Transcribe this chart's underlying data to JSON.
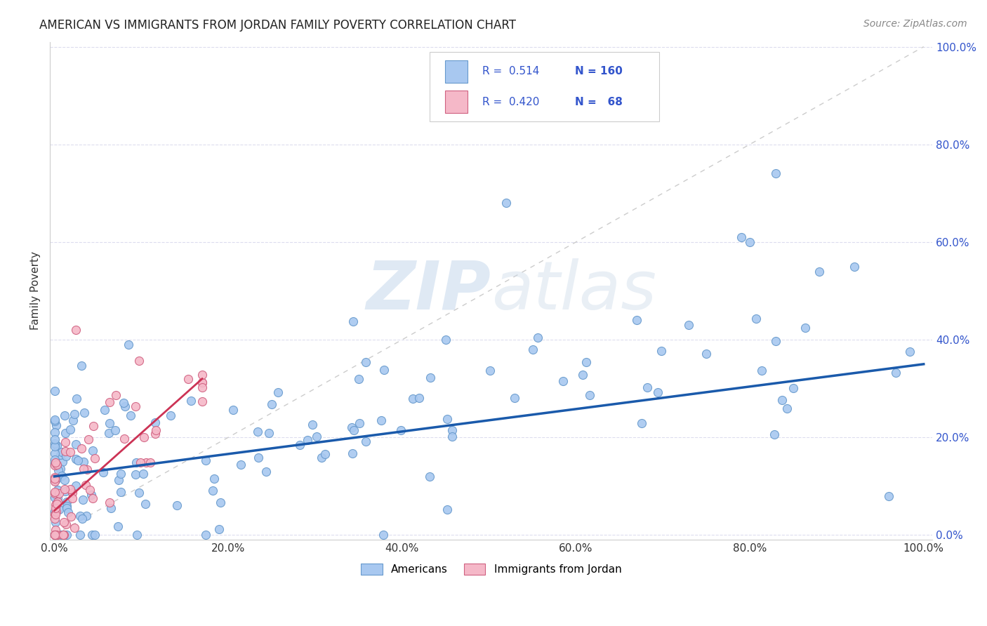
{
  "title": "AMERICAN VS IMMIGRANTS FROM JORDAN FAMILY POVERTY CORRELATION CHART",
  "source": "Source: ZipAtlas.com",
  "ylabel_label": "Family Poverty",
  "legend_labels": [
    "Americans",
    "Immigrants from Jordan"
  ],
  "americans_color": "#a8c8f0",
  "americans_edge": "#6699cc",
  "jordan_color": "#f5b8c8",
  "jordan_edge": "#d06080",
  "regression_american_color": "#1a5aab",
  "regression_jordan_color": "#cc3355",
  "diagonal_color": "#cccccc",
  "watermark_zip": "ZIP",
  "watermark_atlas": "atlas",
  "R_american": 0.514,
  "N_american": 160,
  "R_jordan": 0.42,
  "N_jordan": 68,
  "legend_text_color": "#3355cc",
  "right_axis_color": "#3355cc",
  "seed": 42
}
